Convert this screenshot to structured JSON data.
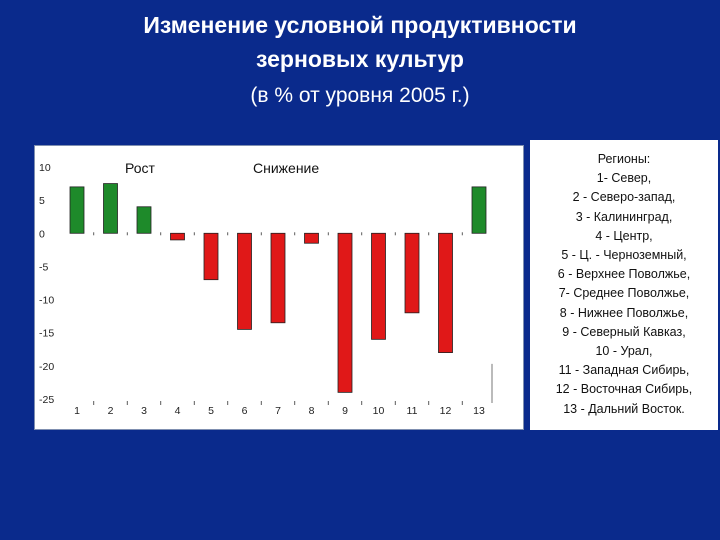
{
  "header": {
    "title_line1": "Изменение условной продуктивности",
    "title_line2": "зерновых культур",
    "subtitle": "(в % от уровня 2005 г.)"
  },
  "chart_data": {
    "type": "bar",
    "categories": [
      "1",
      "2",
      "3",
      "4",
      "5",
      "6",
      "7",
      "8",
      "9",
      "10",
      "11",
      "12",
      "13"
    ],
    "values": [
      7,
      7.5,
      4,
      -1,
      -7,
      -14.5,
      -13.5,
      -1.5,
      -24,
      -16,
      -12,
      -18,
      7
    ],
    "ylim": [
      -25,
      10
    ],
    "yticks": [
      "10",
      "5",
      "0",
      "-5",
      "-10",
      "-15",
      "-20",
      "-25"
    ],
    "annotations": {
      "growth": "Рост",
      "decline": "Снижение"
    },
    "colors": {
      "positive": "#1e8a2a",
      "negative": "#e01818"
    }
  },
  "legend": {
    "lines": [
      "Регионы:",
      "1- Север,",
      "2 - Северо-запад,",
      "3 - Калининград,",
      "4 - Центр,",
      "5 - Ц. - Черноземный,",
      "6 - Верхнее Поволжье,",
      "7- Среднее Поволжье,",
      "8 - Нижнее Поволжье,",
      "9 - Северный Кавказ,",
      "10 - Урал,",
      "11 - Западная Сибирь,",
      "12 - Восточная Сибирь,",
      "13 - Дальний Восток."
    ]
  }
}
